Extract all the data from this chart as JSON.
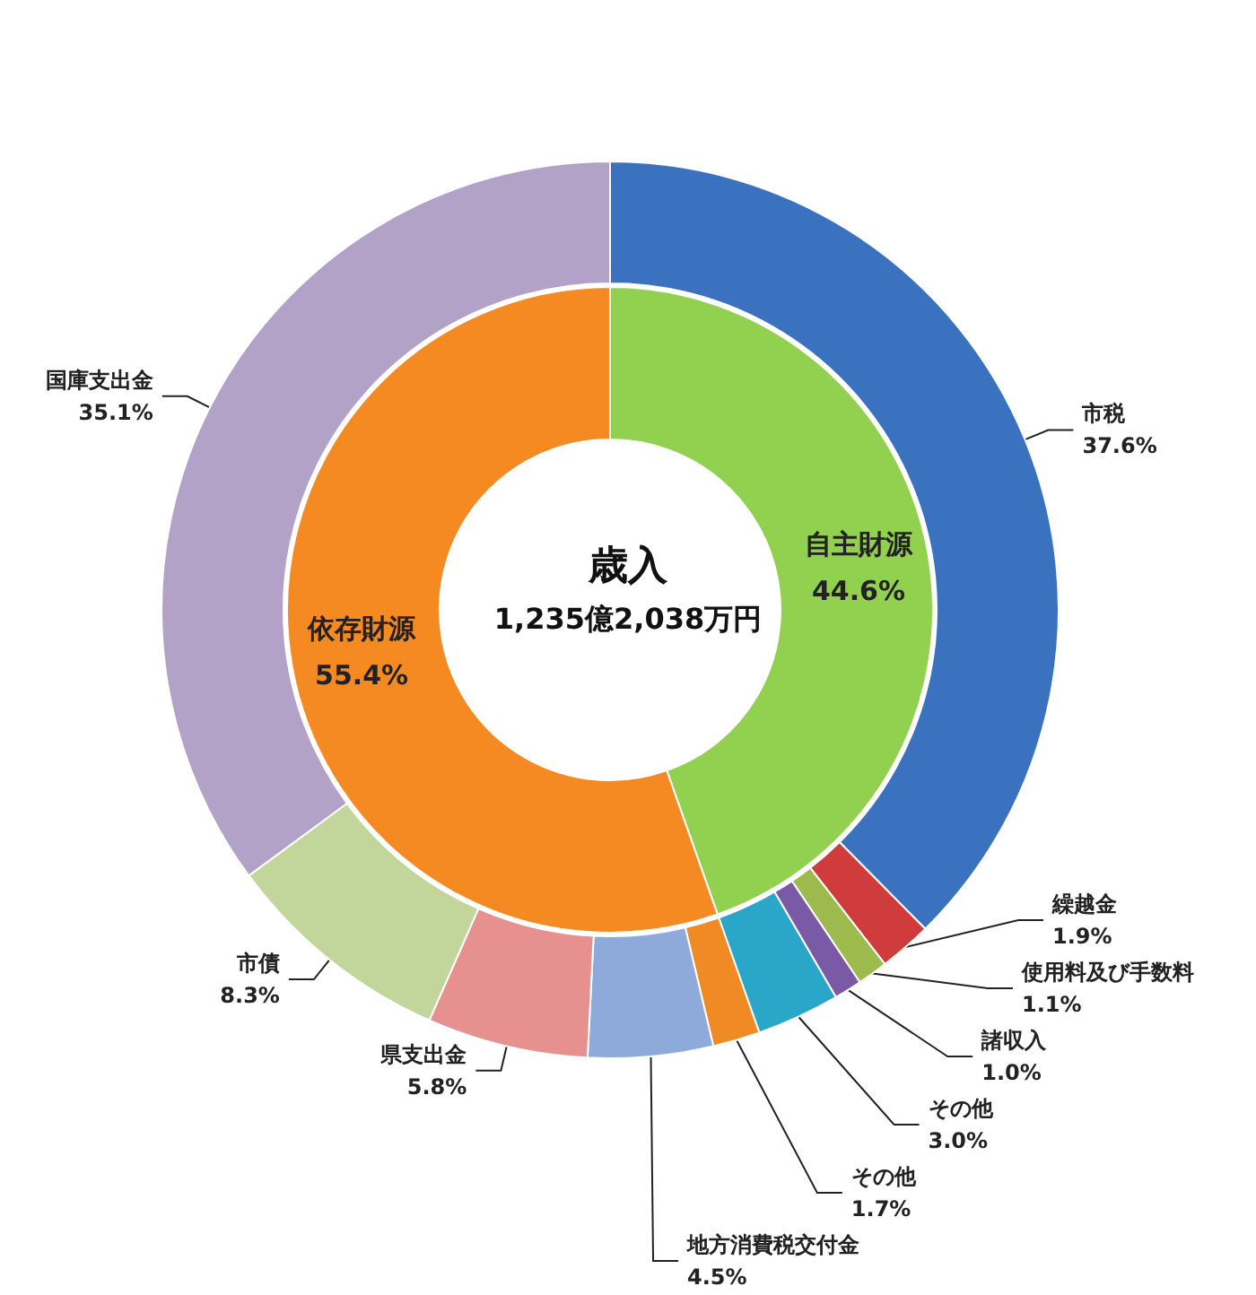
{
  "chart_data": [
    {
      "type": "donut",
      "title": "歳入",
      "subtitle": "1,235億2,038万円",
      "categories": [
        "自主財源",
        "依存財源"
      ],
      "values": [
        44.6,
        55.4
      ],
      "value_labels": [
        "44.6%",
        "55.4%"
      ],
      "colors": [
        "#92d050",
        "#f58a22"
      ]
    },
    {
      "type": "donut",
      "categories": [
        "市税",
        "繰越金",
        "使用料及び手数料",
        "諸収入",
        "その他",
        "その他",
        "地方消費税交付金",
        "県支出金",
        "市債",
        "国庫支出金"
      ],
      "values": [
        37.6,
        1.9,
        1.1,
        1.0,
        3.0,
        1.7,
        4.5,
        5.8,
        8.3,
        35.1
      ],
      "value_labels": [
        "37.6%",
        "1.9%",
        "1.1%",
        "1.0%",
        "3.0%",
        "1.7%",
        "4.5%",
        "5.8%",
        "8.3%",
        "35.1%"
      ],
      "colors": [
        "#3a72c0",
        "#d03c3c",
        "#9cbb4c",
        "#7a5aa6",
        "#2aa6c8",
        "#f08a24",
        "#8eaadb",
        "#e6908f",
        "#c2d69b",
        "#b3a2c7"
      ]
    }
  ]
}
